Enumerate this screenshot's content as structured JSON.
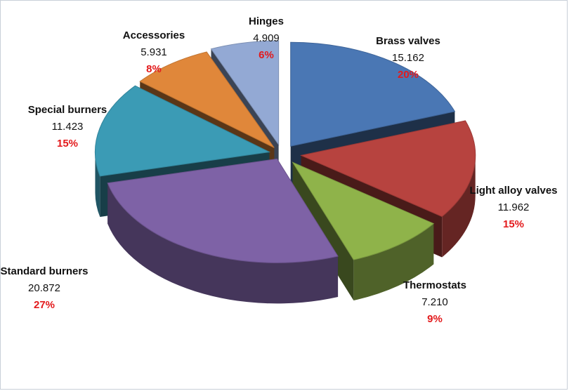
{
  "chart_data": {
    "type": "pie",
    "style": "3d exploded",
    "title": "",
    "slices": [
      {
        "name": "Brass valves",
        "value": 15.162,
        "percent": "20%",
        "color": "#4a77b4"
      },
      {
        "name": "Light alloy valves",
        "value": 11.962,
        "percent": "15%",
        "color": "#b7433f"
      },
      {
        "name": "Thermostats",
        "value": 7.21,
        "percent": "9%",
        "color": "#8fb34a"
      },
      {
        "name": "Standard burners",
        "value": 20.872,
        "percent": "27%",
        "color": "#7e62a6"
      },
      {
        "name": "Special burners",
        "value": 11.423,
        "percent": "15%",
        "color": "#3b9bb5"
      },
      {
        "name": "Accessories",
        "value": 5.931,
        "percent": "8%",
        "color": "#e0873a"
      },
      {
        "name": "Hinges",
        "value": 4.909,
        "percent": "6%",
        "color": "#93a9d4"
      }
    ],
    "value_labels": [
      "15.162",
      "11.962",
      "7.210",
      "20.872",
      "11.423",
      "5.931",
      "4.909"
    ],
    "legend": "none",
    "percent_label_color": "#e31a1c"
  }
}
